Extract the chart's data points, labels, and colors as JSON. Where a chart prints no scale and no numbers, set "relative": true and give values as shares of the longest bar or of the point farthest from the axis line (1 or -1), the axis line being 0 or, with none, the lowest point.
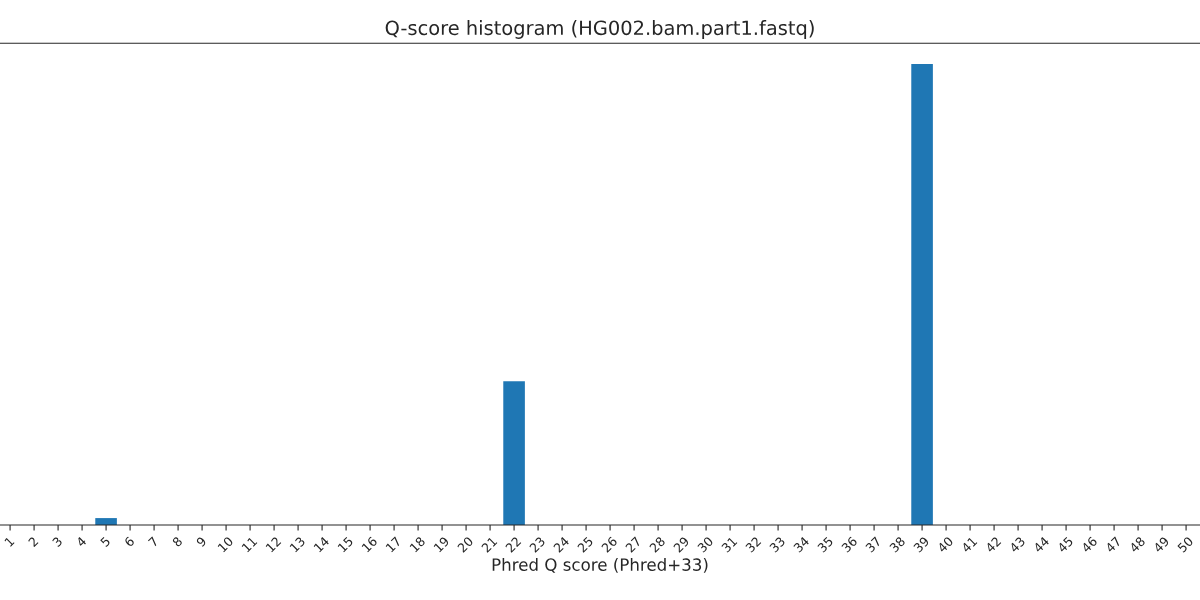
{
  "chart_data": {
    "type": "bar",
    "title": "Q-score histogram (HG002.bam.part1.fastq)",
    "xlabel": "Phred Q score (Phred+33)",
    "categories": [
      "1",
      "2",
      "3",
      "4",
      "5",
      "6",
      "7",
      "8",
      "9",
      "10",
      "11",
      "12",
      "13",
      "14",
      "15",
      "16",
      "17",
      "18",
      "19",
      "20",
      "21",
      "22",
      "23",
      "24",
      "25",
      "26",
      "27",
      "28",
      "29",
      "30",
      "31",
      "32",
      "33",
      "34",
      "35",
      "36",
      "37",
      "38",
      "39",
      "40",
      "41",
      "42",
      "43",
      "44",
      "45",
      "46",
      "47",
      "48",
      "49",
      "50"
    ],
    "values": [
      null,
      null,
      null,
      null,
      0.015,
      null,
      null,
      null,
      null,
      null,
      null,
      null,
      null,
      null,
      null,
      null,
      null,
      null,
      null,
      null,
      null,
      0.312,
      null,
      null,
      null,
      null,
      null,
      null,
      null,
      null,
      null,
      null,
      null,
      null,
      null,
      null,
      null,
      null,
      1,
      null,
      null,
      null,
      null,
      null,
      null,
      null,
      null,
      null,
      null,
      null
    ],
    "color": "#1f77b4",
    "relative": true,
    "grid": false,
    "legend": false
  }
}
